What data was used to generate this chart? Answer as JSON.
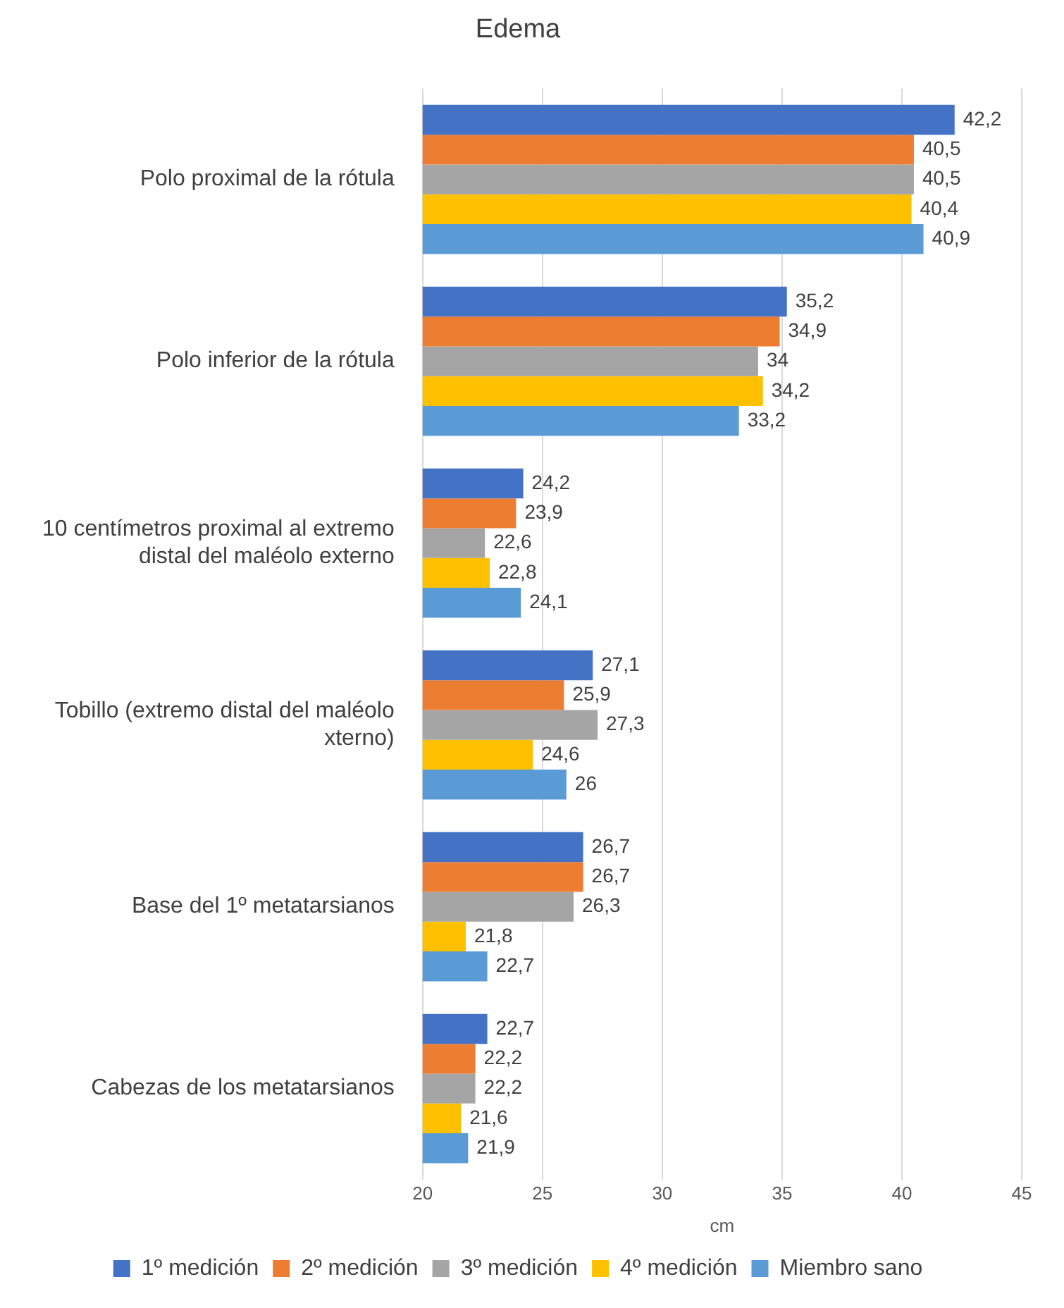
{
  "chart_data": {
    "type": "bar",
    "orientation": "horizontal",
    "title": "Edema",
    "xlabel": "cm",
    "categories": [
      "Polo proximal de la rótula",
      "Polo inferior de la rótula",
      "10 centímetros proximal al extremo distal del maléolo externo",
      "Tobillo (extremo distal del maléolo xterno)",
      "Base del 1º metatarsianos",
      "Cabezas de los metatarsianos"
    ],
    "series": [
      {
        "name": "1º medición",
        "color": "#4472c4",
        "values": [
          42.2,
          35.2,
          24.2,
          27.1,
          26.7,
          22.7
        ],
        "value_labels": [
          "42,2",
          "35,2",
          "24,2",
          "27,1",
          "26,7",
          "22,7"
        ]
      },
      {
        "name": "2º medición",
        "color": "#ed7d31",
        "values": [
          40.5,
          34.9,
          23.9,
          25.9,
          26.7,
          22.2
        ],
        "value_labels": [
          "40,5",
          "34,9",
          "23,9",
          "25,9",
          "26,7",
          "22,2"
        ]
      },
      {
        "name": "3º medición",
        "color": "#a5a5a5",
        "values": [
          40.5,
          34,
          22.6,
          27.3,
          26.3,
          22.2
        ],
        "value_labels": [
          "40,5",
          "34",
          "22,6",
          "27,3",
          "26,3",
          "22,2"
        ]
      },
      {
        "name": "4º medición",
        "color": "#ffc000",
        "values": [
          40.4,
          34.2,
          22.8,
          24.6,
          21.8,
          21.6
        ],
        "value_labels": [
          "40,4",
          "34,2",
          "22,8",
          "24,6",
          "21,8",
          "21,6"
        ]
      },
      {
        "name": "Miembro sano",
        "color": "#5b9bd5",
        "values": [
          40.9,
          33.2,
          24.1,
          26,
          22.7,
          21.9
        ],
        "value_labels": [
          "40,9",
          "33,2",
          "24,1",
          "26",
          "22,7",
          "21,9"
        ]
      }
    ],
    "xlim": [
      20,
      45
    ],
    "xticks": [
      20,
      25,
      30,
      35,
      40,
      45
    ],
    "grid": "x",
    "legend": "bottom"
  }
}
